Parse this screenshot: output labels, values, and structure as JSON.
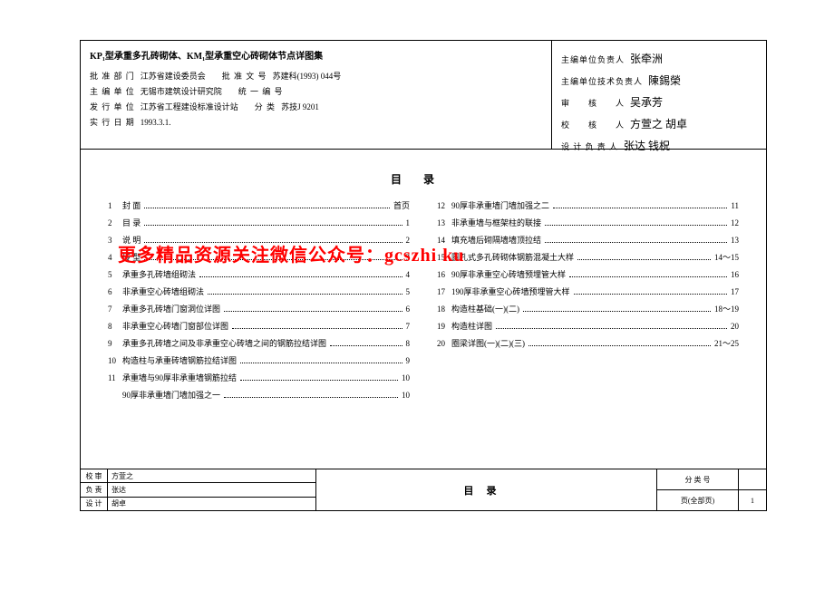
{
  "header": {
    "title": "KP₁型承重多孔砖砌体、KM₁型承重空心砖砌体节点详图集",
    "left_rows": [
      {
        "label": "批 准 部 门",
        "value": "江苏省建设委员会",
        "label2": "批 准 文 号",
        "value2": "苏建科(1993) 044号"
      },
      {
        "label": "主 编 单 位",
        "value": "无锡市建筑设计研究院",
        "label2": "统 一 编 号",
        "value2": ""
      },
      {
        "label": "发 行 单 位",
        "value": "江苏省工程建设标准设计站",
        "label2": "分 类",
        "value2": "苏技J 9201"
      },
      {
        "label": "实 行 日 期",
        "value": "1993.3.1.",
        "label2": "",
        "value2": ""
      }
    ],
    "right_rows": [
      {
        "label": "主编单位负责人",
        "sig": "张牵洲"
      },
      {
        "label": "主编单位技术负责人",
        "sig": "陳錫榮"
      },
      {
        "label": "审　　核　　人",
        "sig": "吴承芳"
      },
      {
        "label": "校　　核　　人",
        "sig": "方萱之  胡卓"
      },
      {
        "label": "设 计 负 责 人",
        "sig": "张达  钱柷"
      }
    ]
  },
  "toc_title": "目录",
  "toc_left": [
    {
      "n": "1",
      "t": "封 面",
      "p": "首页"
    },
    {
      "n": "2",
      "t": "目 录",
      "p": "1"
    },
    {
      "n": "3",
      "t": "说 明",
      "p": "2"
    },
    {
      "n": "4",
      "t": "砖 型",
      "p": "3"
    },
    {
      "n": "5",
      "t": "承重多孔砖墙组砌法",
      "p": "4"
    },
    {
      "n": "6",
      "t": "非承重空心砖墙组砌法",
      "p": "5"
    },
    {
      "n": "7",
      "t": "承重多孔砖墙门窗洞位详图",
      "p": "6"
    },
    {
      "n": "8",
      "t": "非承重空心砖墙门窗部位详图",
      "p": "7"
    },
    {
      "n": "9",
      "t": "承重多孔砖墙之间及非承重空心砖墙之间的钢筋拉结详图",
      "p": "8"
    },
    {
      "n": "10",
      "t": "构造柱与承重砖墙钢筋拉结详图",
      "p": "9"
    },
    {
      "n": "11",
      "t": "承重墙与90厚非承重墙钢筋拉结",
      "p": "10"
    },
    {
      "n": "",
      "t": "90厚非承重墙门墙加强之一",
      "p": "10"
    }
  ],
  "toc_right": [
    {
      "n": "12",
      "t": "90厚非承重墙门墙加强之二",
      "p": "11"
    },
    {
      "n": "13",
      "t": "非承重墙与框架柱的联接",
      "p": "12"
    },
    {
      "n": "14",
      "t": "填充墙后砌隔墙墙顶拉结",
      "p": "13"
    },
    {
      "n": "15",
      "t": "圆孔式多孔砖砌体钢筋混凝土大样",
      "p": "14～15"
    },
    {
      "n": "16",
      "t": "90厚非承重空心砖墙预埋管大样",
      "p": "16"
    },
    {
      "n": "17",
      "t": "190厚非承重空心砖墙预埋管大样",
      "p": "17"
    },
    {
      "n": "18",
      "t": "构造柱基础(一)(二)",
      "p": "18～19"
    },
    {
      "n": "19",
      "t": "构造柱详图",
      "p": "20"
    },
    {
      "n": "20",
      "t": "圈梁详图(一)(二)(三)",
      "p": "21～25"
    }
  ],
  "overlay": "更多精品资源关注微信公众号：gcszhi ku",
  "footer": {
    "c1": [
      {
        "a": "校 审",
        "b": "方萱之"
      },
      {
        "a": "负 责",
        "b": "张达"
      },
      {
        "a": "设 计",
        "b": "胡卓"
      }
    ],
    "c2": "目录",
    "c3": [
      {
        "a": "分 类 号",
        "b": ""
      },
      {
        "a": "页(全部页)",
        "b": "1"
      }
    ]
  }
}
